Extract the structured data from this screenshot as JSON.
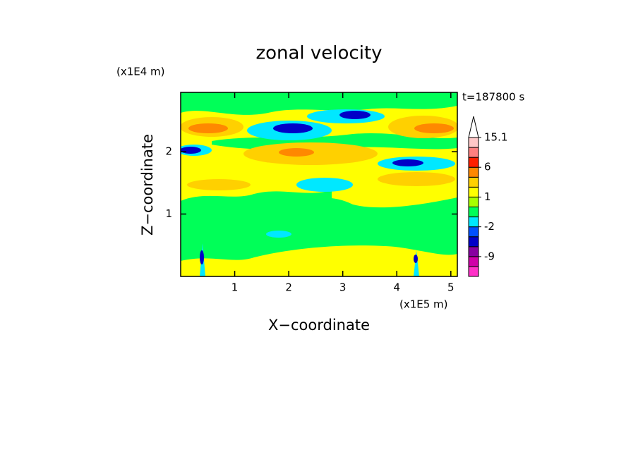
{
  "chart_data": {
    "type": "contour",
    "title": "zonal velocity",
    "x_label": "X−coordinate",
    "y_label": "Z−coordinate",
    "x_unit": "(x1E5 m)",
    "y_unit": "(x1E4 m)",
    "time_label": "t=187800 s",
    "xlim": [
      0,
      5.12
    ],
    "ylim": [
      0,
      2.95
    ],
    "xticks": [
      1,
      2,
      3,
      4,
      5
    ],
    "yticks": [
      1,
      2
    ],
    "colorbar": {
      "levels": [
        -15,
        -12,
        -9,
        -6,
        -3,
        -2,
        -1,
        0,
        1,
        2,
        3,
        6,
        9,
        12,
        15.1
      ],
      "colors": [
        "#ff30c8",
        "#d000a8",
        "#8800a0",
        "#0000c8",
        "#0050ff",
        "#00e8ff",
        "#00ff58",
        "#a8ff00",
        "#ffff00",
        "#ffd000",
        "#ff8800",
        "#ff2000",
        "#ff8080",
        "#ffc8c8"
      ],
      "ticks": [
        -9,
        -2,
        1,
        6,
        15.1
      ]
    }
  }
}
